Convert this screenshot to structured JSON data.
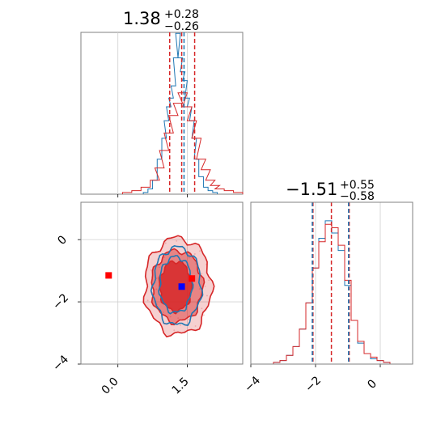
{
  "chart_data": [
    {
      "type": "histogram",
      "panel": "marginal-param-1",
      "title": {
        "value": "1.38",
        "upper": "+0.28",
        "lower": "−0.26"
      },
      "xlim": [
        -0.8,
        2.7
      ],
      "grid": true,
      "quantile_lines": {
        "red": [
          1.12,
          1.38,
          1.66
        ],
        "blue": [
          1.43
        ]
      },
      "series": [
        {
          "color": "#1f77b4",
          "x": [
            0.6,
            0.7,
            0.8,
            0.9,
            1.0,
            1.05,
            1.1,
            1.15,
            1.2,
            1.25,
            1.3,
            1.35,
            1.4,
            1.45,
            1.5,
            1.55,
            1.6,
            1.65,
            1.7,
            1.8,
            1.9,
            2.0,
            2.1
          ],
          "values": [
            0.01,
            0.03,
            0.08,
            0.2,
            0.32,
            0.42,
            0.5,
            0.55,
            0.62,
            0.78,
            0.92,
            0.78,
            0.7,
            0.65,
            0.55,
            0.5,
            0.42,
            0.32,
            0.2,
            0.1,
            0.04,
            0.02,
            0.01
          ]
        },
        {
          "color": "#d62728",
          "x": [
            0.2,
            0.4,
            0.6,
            0.8,
            0.9,
            1.0,
            1.1,
            1.2,
            1.3,
            1.4,
            1.5,
            1.6,
            1.7,
            1.8,
            1.9,
            2.0,
            2.1,
            2.2,
            2.4,
            2.6
          ],
          "values": [
            0.01,
            0.02,
            0.04,
            0.08,
            0.15,
            0.25,
            0.35,
            0.45,
            0.52,
            0.58,
            0.5,
            0.42,
            0.32,
            0.2,
            0.14,
            0.08,
            0.05,
            0.03,
            0.02,
            0.01
          ]
        }
      ]
    },
    {
      "type": "histogram",
      "panel": "marginal-param-2",
      "title": {
        "value": "−1.51",
        "upper": "+0.55",
        "lower": "−0.58"
      },
      "xlim": [
        -4.0,
        1.0
      ],
      "x_ticks": [
        "−4",
        "−2",
        "0"
      ],
      "grid": true,
      "quantile_lines": {
        "red": [
          -2.08,
          -1.51,
          -0.96
        ],
        "blue": [
          -2.1,
          -0.98
        ]
      },
      "series": [
        {
          "color": "#1f77b4",
          "x": [
            -3.2,
            -3.0,
            -2.8,
            -2.6,
            -2.4,
            -2.2,
            -2.0,
            -1.8,
            -1.6,
            -1.4,
            -1.2,
            -1.0,
            -0.8,
            -0.6,
            -0.4,
            -0.2,
            0.0,
            0.2
          ],
          "values": [
            0.01,
            0.02,
            0.05,
            0.1,
            0.2,
            0.35,
            0.55,
            0.72,
            0.82,
            0.75,
            0.65,
            0.45,
            0.25,
            0.12,
            0.06,
            0.03,
            0.02,
            0.01
          ]
        },
        {
          "color": "#d62728",
          "x": [
            -3.2,
            -3.0,
            -2.8,
            -2.6,
            -2.4,
            -2.2,
            -2.0,
            -1.8,
            -1.6,
            -1.4,
            -1.2,
            -1.0,
            -0.8,
            -0.6,
            -0.4,
            -0.2,
            0.0,
            0.2
          ],
          "values": [
            0.01,
            0.02,
            0.05,
            0.1,
            0.2,
            0.35,
            0.55,
            0.7,
            0.8,
            0.78,
            0.68,
            0.48,
            0.25,
            0.13,
            0.06,
            0.04,
            0.02,
            0.01
          ]
        }
      ]
    },
    {
      "type": "scatter",
      "panel": "joint-2d",
      "xlim": [
        -0.8,
        2.7
      ],
      "ylim": [
        -4.0,
        1.2
      ],
      "x_ticks": [
        "0.0",
        "1.5"
      ],
      "y_ticks": [
        "−4",
        "−2",
        "0"
      ],
      "grid": true,
      "contours": [
        {
          "color": "#d62728",
          "filled": true,
          "cx": 1.3,
          "cy": -1.5,
          "rx": 0.72,
          "ry": 1.55,
          "level": "outer"
        },
        {
          "color": "#d62728",
          "filled": true,
          "cx": 1.28,
          "cy": -1.5,
          "rx": 0.55,
          "ry": 1.15,
          "level": "middle"
        },
        {
          "color": "#d62728",
          "filled": true,
          "cx": 1.25,
          "cy": -1.5,
          "rx": 0.35,
          "ry": 0.8,
          "level": "inner"
        },
        {
          "color": "#1f77b4",
          "filled": false,
          "cx": 1.28,
          "cy": -1.5,
          "rx": 0.52,
          "ry": 1.25,
          "level": "outer"
        },
        {
          "color": "#1f77b4",
          "filled": false,
          "cx": 1.25,
          "cy": -1.45,
          "rx": 0.35,
          "ry": 0.9,
          "level": "inner"
        }
      ],
      "markers": [
        {
          "color": "#ff0000",
          "x": -0.2,
          "y": -1.15
        },
        {
          "color": "#0000ff",
          "x": 1.38,
          "y": -1.51
        },
        {
          "color": "#ff0000",
          "x": 1.6,
          "y": -1.25
        }
      ]
    }
  ]
}
